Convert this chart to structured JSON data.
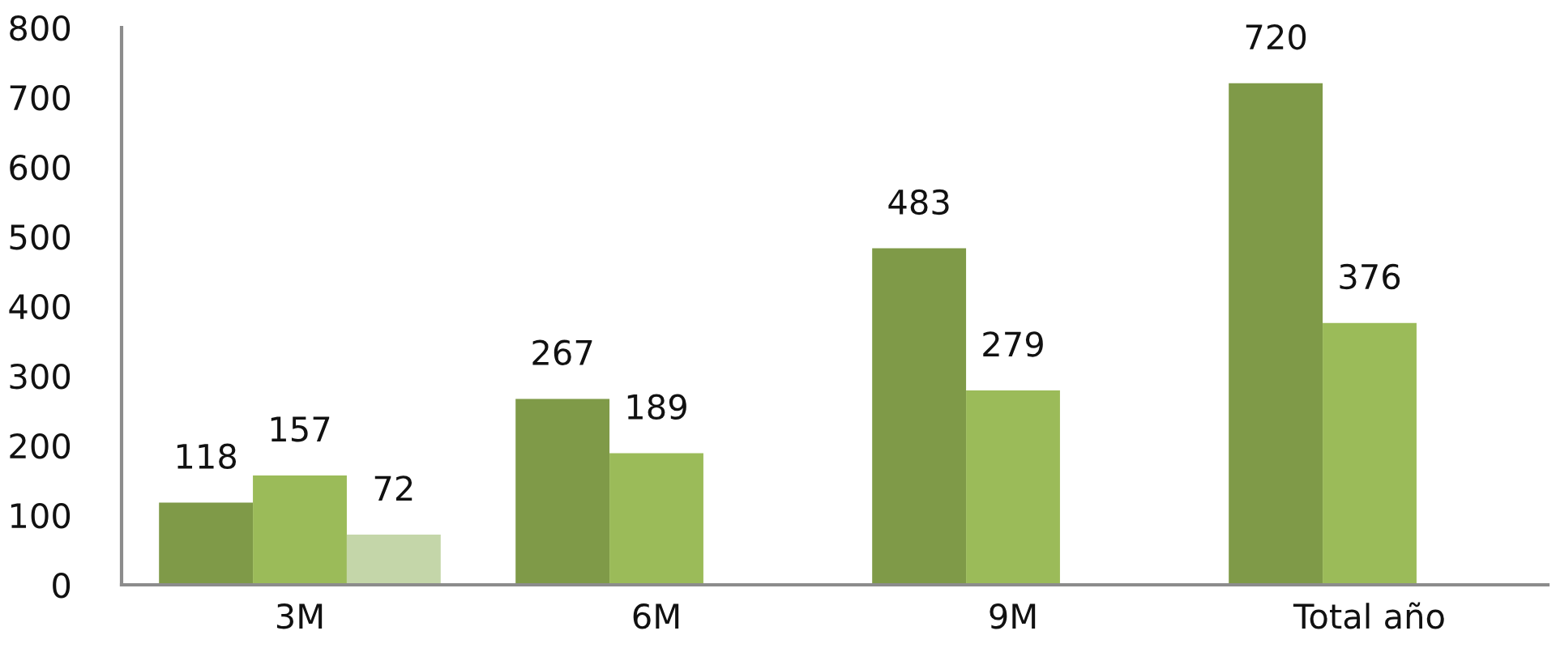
{
  "chart_data": {
    "type": "bar",
    "categories": [
      "3M",
      "6M",
      "9M",
      "Total año"
    ],
    "series": [
      {
        "color": "#7f9a48",
        "values": [
          118,
          267,
          483,
          720
        ]
      },
      {
        "color": "#9bbb59",
        "values": [
          157,
          189,
          279,
          376
        ]
      },
      {
        "color": "#c4d6a9",
        "values": [
          72,
          null,
          null,
          null
        ]
      }
    ],
    "ylim": [
      0,
      800
    ],
    "yticks": [
      0,
      100,
      200,
      300,
      400,
      500,
      600,
      700,
      800
    ],
    "data_labels": true
  }
}
